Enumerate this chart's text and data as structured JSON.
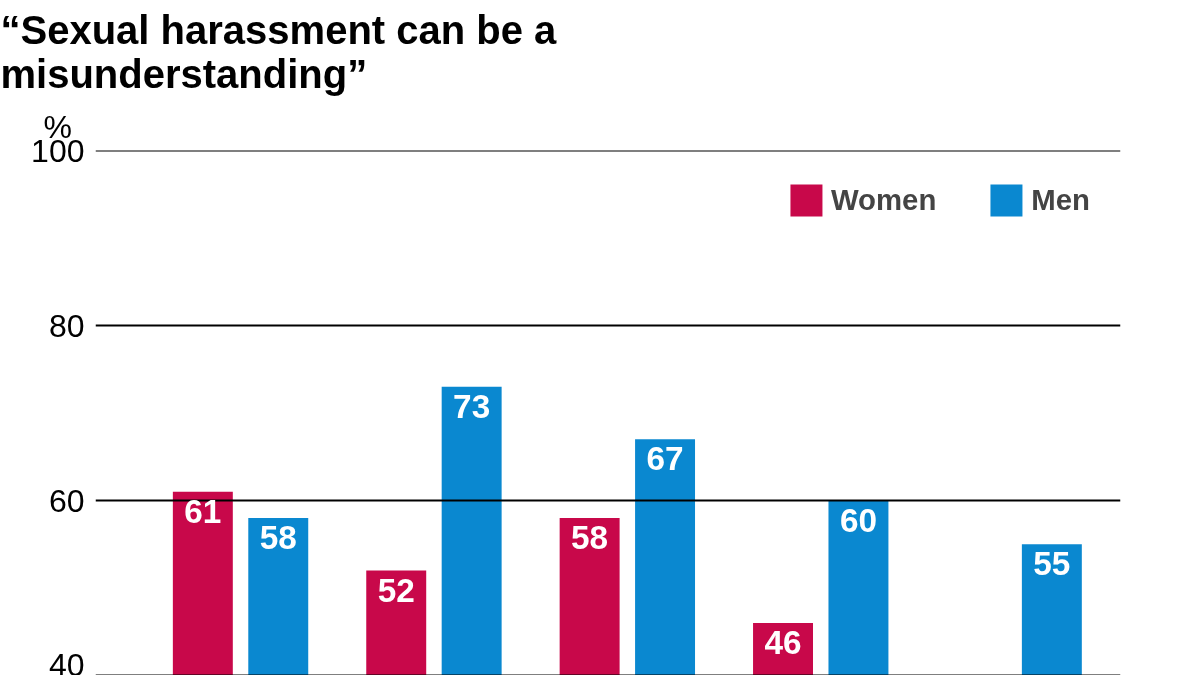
{
  "chart_data": {
    "type": "bar",
    "title": "“Sexual harassment can be a misunderstanding”",
    "ylabel": "%",
    "categories": [
      null,
      null,
      null,
      null,
      null
    ],
    "series": [
      {
        "name": "Women",
        "color": "#c8084a",
        "values": [
          61,
          52,
          58,
          46,
          null
        ]
      },
      {
        "name": "Men",
        "color": "#0a88d0",
        "values": [
          58,
          73,
          67,
          60,
          55
        ]
      }
    ],
    "ylim": [
      40,
      100
    ],
    "yticks": [
      40,
      60,
      80,
      100
    ],
    "grid": "y",
    "legend": "top right",
    "data_labels": true,
    "tick_labels": "y"
  }
}
